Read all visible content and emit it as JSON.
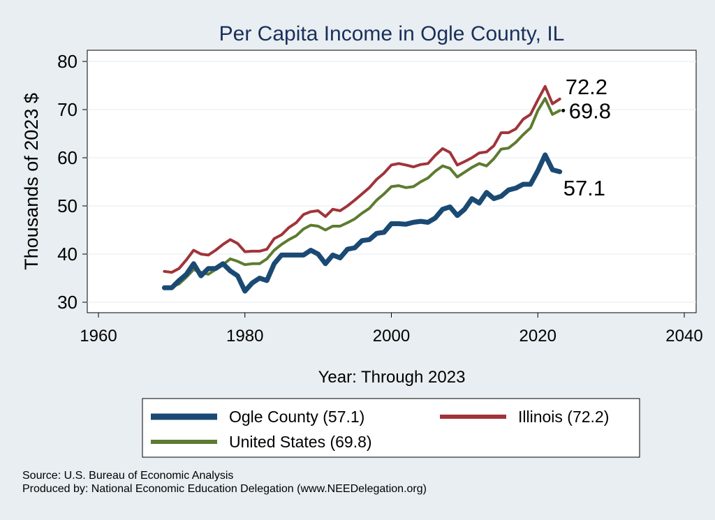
{
  "chart_data": {
    "type": "line",
    "title": "Per Capita Income in Ogle County, IL",
    "xlabel": "Year: Through 2023",
    "ylabel": "Thousands of 2023 $",
    "xlim": [
      1960,
      2040
    ],
    "ylim": [
      28,
      82
    ],
    "xticks": [
      1960,
      1980,
      2000,
      2020,
      2040
    ],
    "yticks": [
      30,
      40,
      50,
      60,
      70,
      80
    ],
    "grid": true,
    "legend_position": "bottom",
    "x": [
      1969,
      1970,
      1971,
      1972,
      1973,
      1974,
      1975,
      1976,
      1977,
      1978,
      1979,
      1980,
      1981,
      1982,
      1983,
      1984,
      1985,
      1986,
      1987,
      1988,
      1989,
      1990,
      1991,
      1992,
      1993,
      1994,
      1995,
      1996,
      1997,
      1998,
      1999,
      2000,
      2001,
      2002,
      2003,
      2004,
      2005,
      2006,
      2007,
      2008,
      2009,
      2010,
      2011,
      2012,
      2013,
      2014,
      2015,
      2016,
      2017,
      2018,
      2019,
      2020,
      2021,
      2022,
      2023
    ],
    "series": [
      {
        "name": "Ogle County (57.1)",
        "end_label": "57.1",
        "color": "#1a4a73",
        "values": [
          33.0,
          33.0,
          34.5,
          35.8,
          38.0,
          35.5,
          37.0,
          37.0,
          38.0,
          36.5,
          35.5,
          32.3,
          34.0,
          35.0,
          34.5,
          38.0,
          39.8,
          39.8,
          39.8,
          39.8,
          40.8,
          40.0,
          38.0,
          39.8,
          39.2,
          41.0,
          41.3,
          42.8,
          43.0,
          44.3,
          44.5,
          46.3,
          46.3,
          46.2,
          46.6,
          46.8,
          46.6,
          47.5,
          49.3,
          49.8,
          48.0,
          49.3,
          51.5,
          50.6,
          52.8,
          51.5,
          52.0,
          53.3,
          53.7,
          54.5,
          54.5,
          57.3,
          60.6,
          57.5,
          57.1
        ]
      },
      {
        "name": "Illinois (72.2)",
        "end_label": "72.2",
        "color": "#a0343a",
        "values": [
          36.4,
          36.2,
          37.0,
          38.8,
          40.8,
          40.0,
          39.8,
          40.8,
          42.0,
          43.0,
          42.2,
          40.5,
          40.6,
          40.6,
          41.0,
          43.2,
          44.0,
          45.5,
          46.5,
          48.2,
          48.8,
          49.0,
          47.8,
          49.3,
          49.0,
          50.0,
          51.2,
          52.5,
          53.8,
          55.5,
          56.8,
          58.5,
          58.8,
          58.5,
          58.1,
          58.6,
          58.8,
          60.5,
          61.9,
          61.1,
          58.5,
          59.2,
          60.0,
          61.0,
          61.2,
          62.5,
          65.2,
          65.2,
          66.0,
          68.0,
          69.0,
          72.0,
          74.8,
          71.2,
          72.2
        ]
      },
      {
        "name": "United States (69.8)",
        "end_label": "69.8",
        "color": "#5d7b30",
        "values": [
          32.8,
          33.2,
          33.8,
          35.2,
          36.8,
          36.2,
          35.8,
          36.8,
          37.8,
          39.0,
          38.5,
          37.8,
          38.0,
          38.0,
          39.0,
          40.8,
          42.0,
          43.0,
          43.8,
          45.2,
          46.0,
          45.8,
          45.0,
          45.8,
          45.8,
          46.5,
          47.3,
          48.5,
          49.5,
          51.2,
          52.5,
          54.0,
          54.2,
          53.8,
          54.0,
          55.0,
          55.8,
          57.2,
          58.3,
          57.8,
          56.0,
          57.0,
          58.0,
          58.8,
          58.3,
          59.8,
          61.8,
          62.0,
          63.2,
          64.8,
          66.2,
          69.8,
          72.3,
          69.0,
          69.8
        ]
      }
    ]
  },
  "source_lines": [
    "Source: U.S. Bureau of Economic Analysis",
    "Produced by: National Economic Education Delegation (www.NEEDelegation.org)"
  ]
}
